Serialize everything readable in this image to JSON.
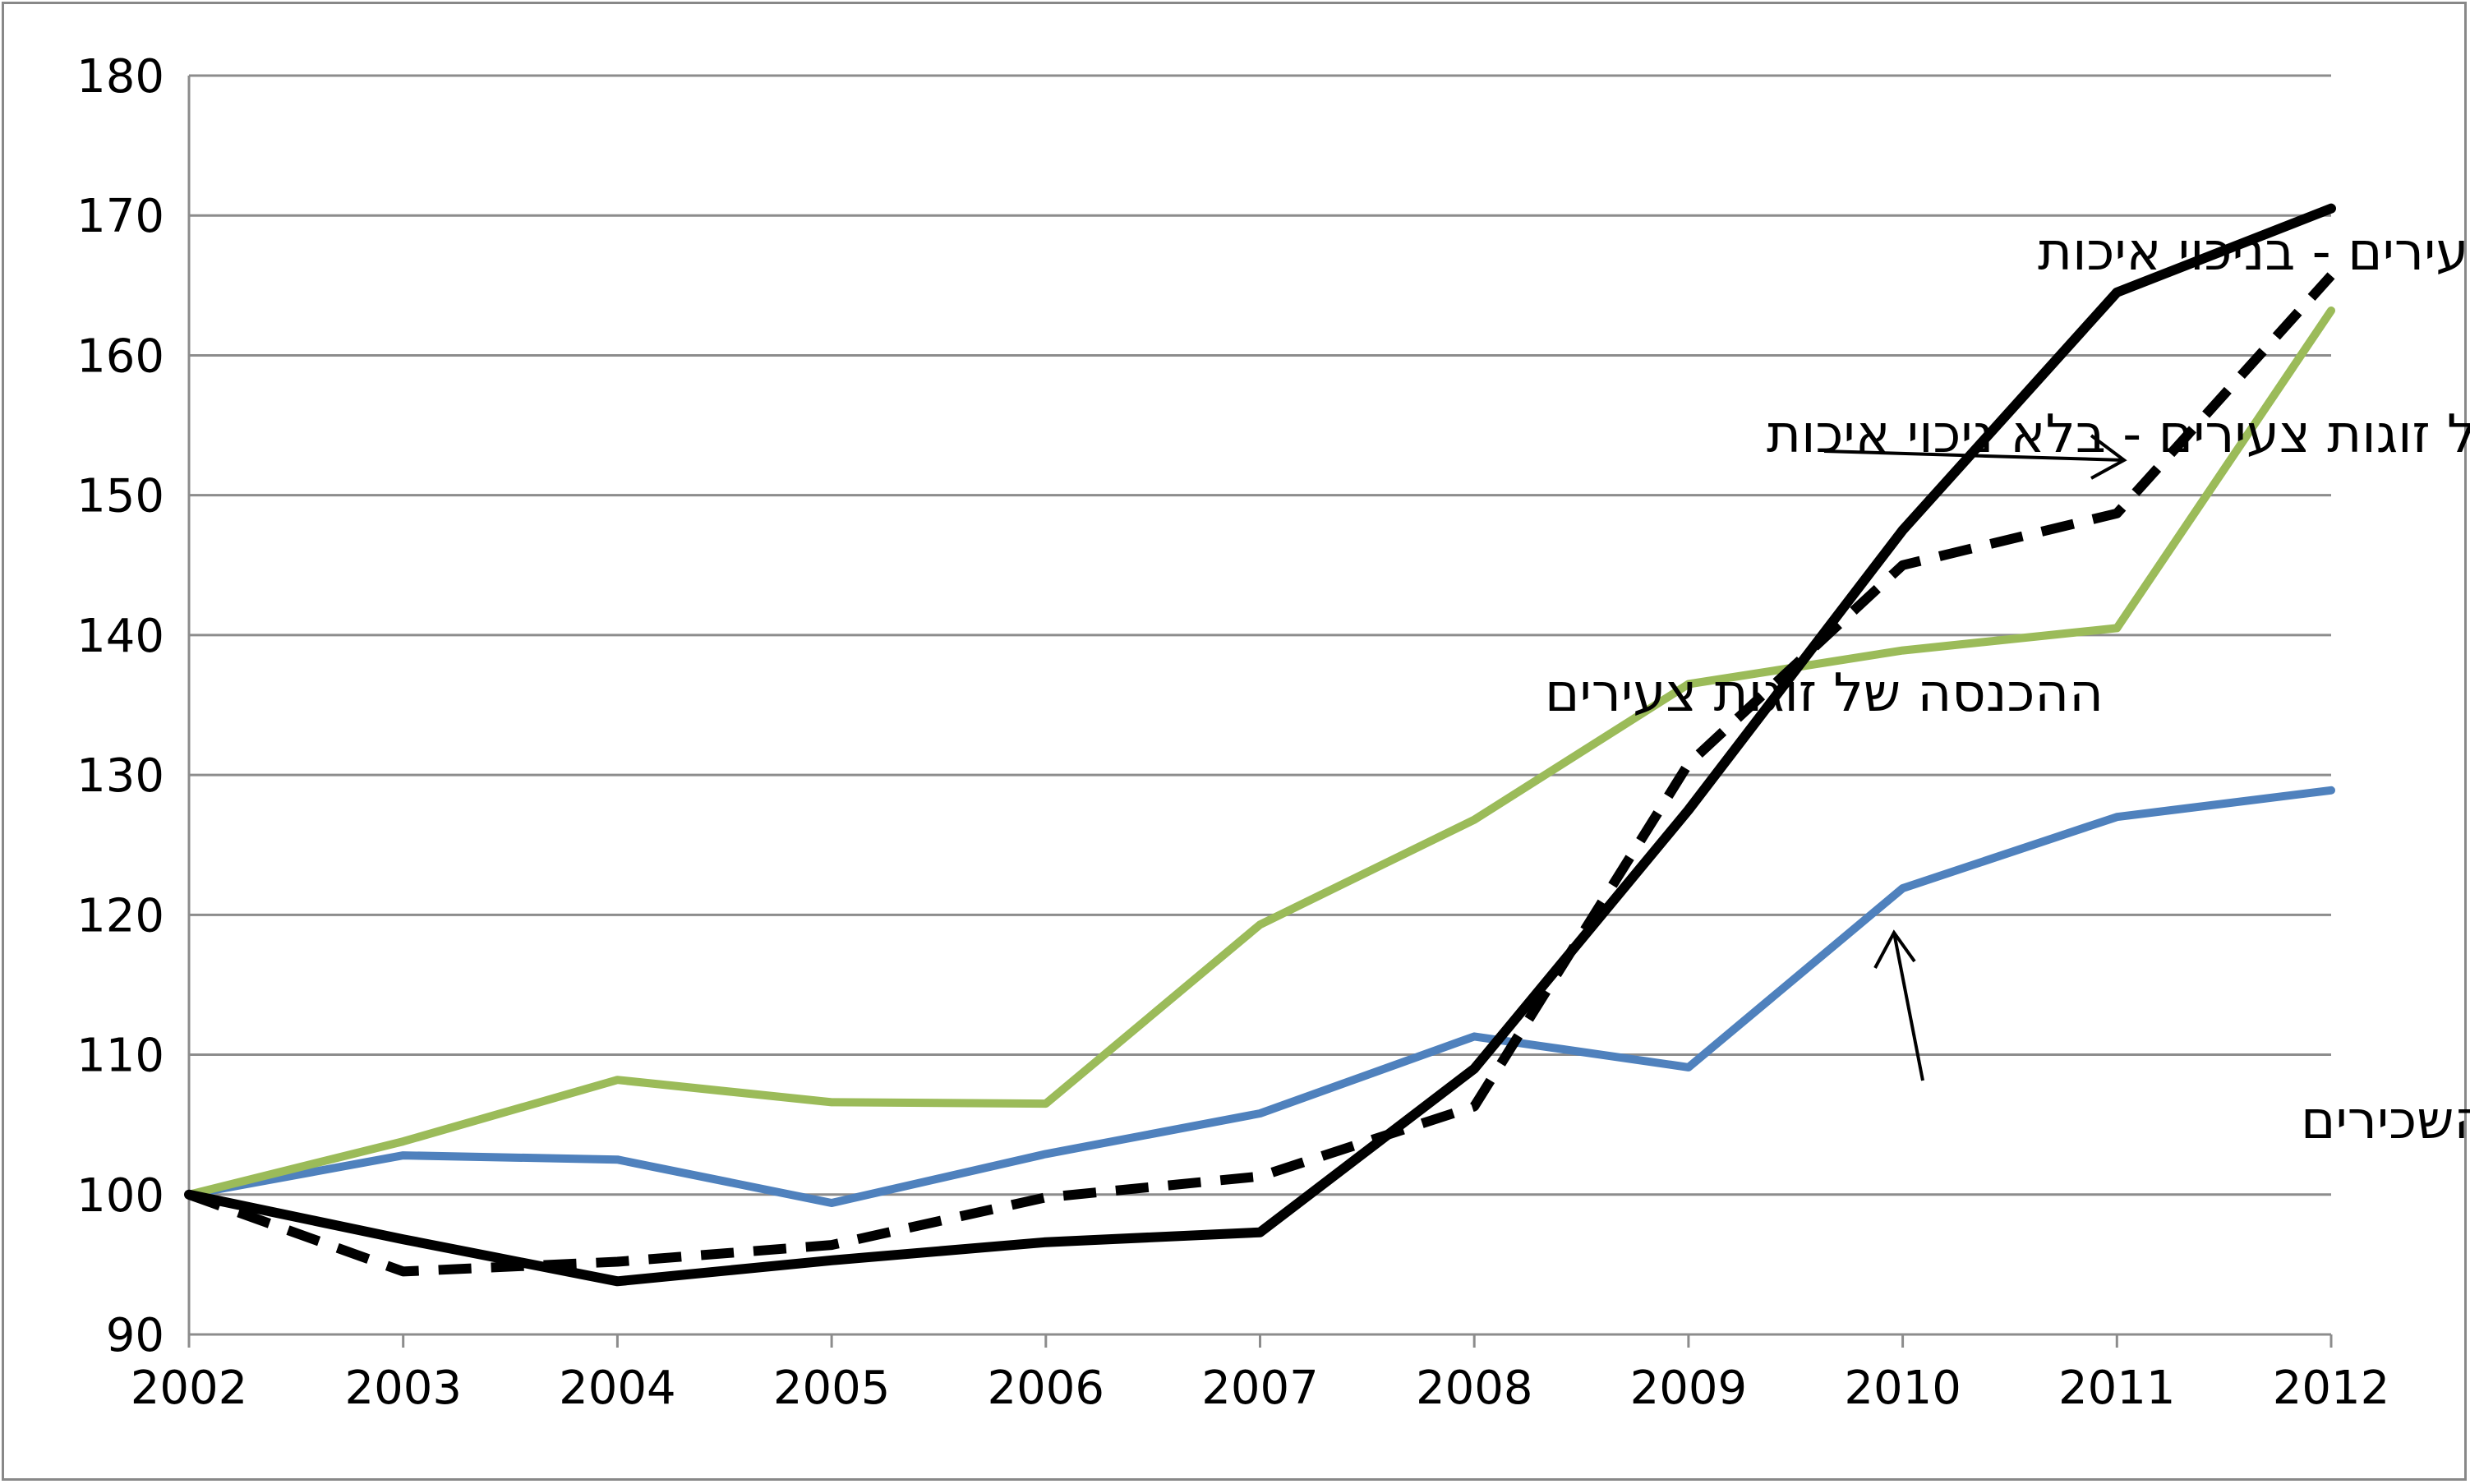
{
  "chart_data": {
    "type": "line",
    "x": [
      2002,
      2003,
      2004,
      2005,
      2006,
      2007,
      2008,
      2009,
      2010,
      2011,
      2012
    ],
    "ylim": [
      90,
      180
    ],
    "yticks": [
      90,
      100,
      110,
      120,
      130,
      140,
      150,
      160,
      170,
      180
    ],
    "grid": true,
    "series": [
      {
        "key": "prices_adjusted",
        "color": "#000000",
        "dash": "solid",
        "values": [
          100,
          96.8,
          93.8,
          95.3,
          96.6,
          97.3,
          109,
          127.5,
          147.5,
          164.5,
          170.5
        ]
      },
      {
        "key": "prices_nominal",
        "color": "#000000",
        "dash": "dashed",
        "values": [
          100,
          94.5,
          95.2,
          96.4,
          99.8,
          101.3,
          106.3,
          130.8,
          145,
          148.7,
          165.7
        ]
      },
      {
        "key": "income_young_couples",
        "color": "#9bbb59",
        "dash": "solid",
        "values": [
          100,
          103.8,
          108.2,
          106.6,
          106.5,
          119.3,
          126.8,
          136.5,
          138.9,
          140.5,
          163.2
        ]
      },
      {
        "key": "income_all_employees",
        "color": "#4f81bd",
        "dash": "solid",
        "values": [
          100,
          102.8,
          102.5,
          99.4,
          102.9,
          105.8,
          111.3,
          109.1,
          121.9,
          127,
          128.9
        ]
      }
    ],
    "annotations": [
      {
        "key": "prices_adjusted",
        "text": "מחירי הדירות של זוגות צעירים - בניכוי איכות"
      },
      {
        "key": "prices_nominal",
        "text": "מחירי הדירות של זוגות צעירים - בלא ניכוי איכות"
      },
      {
        "key": "income_young_couples",
        "text": "ההכנסה של זוגות צעירים"
      },
      {
        "key": "income_all_employees",
        "text": "ההכנסה של כל השכירים"
      }
    ]
  }
}
